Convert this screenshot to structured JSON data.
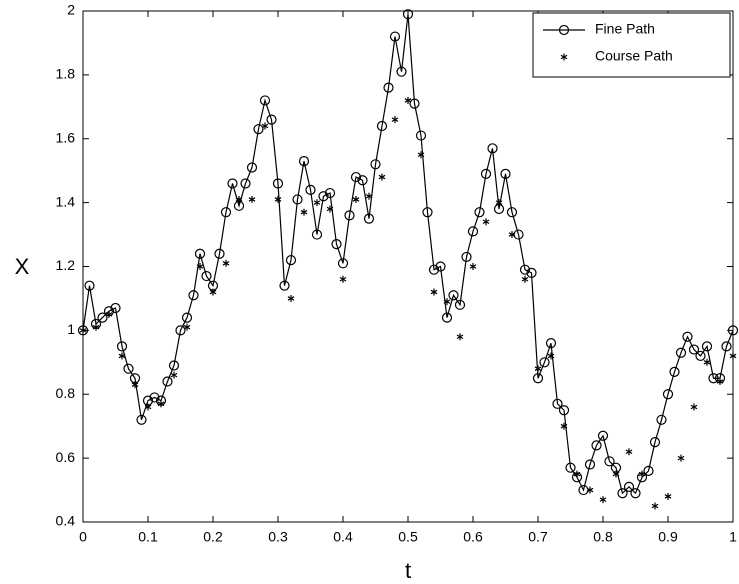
{
  "chart_data": {
    "type": "line",
    "xlabel": "t",
    "ylabel": "X",
    "xlim": [
      0,
      1
    ],
    "ylim": [
      0.4,
      2
    ],
    "xticks": [
      0,
      0.1,
      0.2,
      0.3,
      0.4,
      0.5,
      0.6,
      0.7,
      0.8,
      0.9,
      1
    ],
    "yticks": [
      0.4,
      0.6,
      0.8,
      1,
      1.2,
      1.4,
      1.6,
      1.8,
      2
    ],
    "legend": "upper right",
    "series": [
      {
        "name": "Fine Path",
        "color": "#000000",
        "marker": "circle",
        "line": true,
        "x": [
          0,
          0.01,
          0.02,
          0.03,
          0.04,
          0.05,
          0.06,
          0.07,
          0.08,
          0.09,
          0.1,
          0.11,
          0.12,
          0.13,
          0.14,
          0.15,
          0.16,
          0.17,
          0.18,
          0.19,
          0.2,
          0.21,
          0.22,
          0.23,
          0.24,
          0.25,
          0.26,
          0.27,
          0.28,
          0.29,
          0.3,
          0.31,
          0.32,
          0.33,
          0.34,
          0.35,
          0.36,
          0.37,
          0.38,
          0.39,
          0.4,
          0.41,
          0.42,
          0.43,
          0.44,
          0.45,
          0.46,
          0.47,
          0.48,
          0.49,
          0.5,
          0.51,
          0.52,
          0.53,
          0.54,
          0.55,
          0.56,
          0.57,
          0.58,
          0.59,
          0.6,
          0.61,
          0.62,
          0.63,
          0.64,
          0.65,
          0.66,
          0.67,
          0.68,
          0.69,
          0.7,
          0.71,
          0.72,
          0.73,
          0.74,
          0.75,
          0.76,
          0.77,
          0.78,
          0.79,
          0.8,
          0.81,
          0.82,
          0.83,
          0.84,
          0.85,
          0.86,
          0.87,
          0.88,
          0.89,
          0.9,
          0.91,
          0.92,
          0.93,
          0.94,
          0.95,
          0.96,
          0.97,
          0.98,
          0.99,
          1
        ],
        "values": [
          1.0,
          1.14,
          1.02,
          1.04,
          1.06,
          1.07,
          0.95,
          0.88,
          0.85,
          0.72,
          0.78,
          0.79,
          0.78,
          0.84,
          0.89,
          1.0,
          1.04,
          1.11,
          1.24,
          1.17,
          1.14,
          1.24,
          1.37,
          1.46,
          1.39,
          1.46,
          1.51,
          1.63,
          1.72,
          1.66,
          1.46,
          1.14,
          1.22,
          1.41,
          1.53,
          1.44,
          1.3,
          1.42,
          1.43,
          1.27,
          1.21,
          1.36,
          1.48,
          1.47,
          1.35,
          1.52,
          1.64,
          1.76,
          1.92,
          1.81,
          1.99,
          1.71,
          1.61,
          1.37,
          1.19,
          1.2,
          1.04,
          1.11,
          1.08,
          1.23,
          1.31,
          1.37,
          1.49,
          1.57,
          1.38,
          1.49,
          1.37,
          1.3,
          1.19,
          1.18,
          0.85,
          0.9,
          0.96,
          0.77,
          0.75,
          0.57,
          0.54,
          0.5,
          0.58,
          0.64,
          0.67,
          0.59,
          0.57,
          0.49,
          0.51,
          0.49,
          0.54,
          0.56,
          0.65,
          0.72,
          0.8,
          0.87,
          0.93,
          0.98,
          0.94,
          0.92,
          0.95,
          0.85,
          0.85,
          0.95,
          1.0
        ]
      },
      {
        "name": "Course Path",
        "color": "#000000",
        "marker": "star",
        "line": false,
        "x": [
          0,
          0.02,
          0.04,
          0.06,
          0.08,
          0.1,
          0.12,
          0.14,
          0.16,
          0.18,
          0.2,
          0.22,
          0.24,
          0.26,
          0.28,
          0.3,
          0.32,
          0.34,
          0.36,
          0.38,
          0.4,
          0.42,
          0.44,
          0.46,
          0.48,
          0.5,
          0.52,
          0.54,
          0.56,
          0.58,
          0.6,
          0.62,
          0.64,
          0.66,
          0.68,
          0.7,
          0.72,
          0.74,
          0.76,
          0.78,
          0.8,
          0.82,
          0.84,
          0.86,
          0.88,
          0.9,
          0.92,
          0.94,
          0.96,
          0.98,
          1
        ],
        "values": [
          1.0,
          1.01,
          1.05,
          0.92,
          0.83,
          0.76,
          0.77,
          0.86,
          1.01,
          1.2,
          1.12,
          1.21,
          1.41,
          1.41,
          1.64,
          1.41,
          1.1,
          1.37,
          1.4,
          1.38,
          1.16,
          1.41,
          1.42,
          1.48,
          1.66,
          1.72,
          1.55,
          1.12,
          1.09,
          0.98,
          1.2,
          1.34,
          1.4,
          1.3,
          1.16,
          0.88,
          0.92,
          0.7,
          0.55,
          0.5,
          0.47,
          0.55,
          0.62,
          0.55,
          0.45,
          0.48,
          0.6,
          0.76,
          0.9,
          0.84,
          0.92
        ]
      }
    ]
  }
}
